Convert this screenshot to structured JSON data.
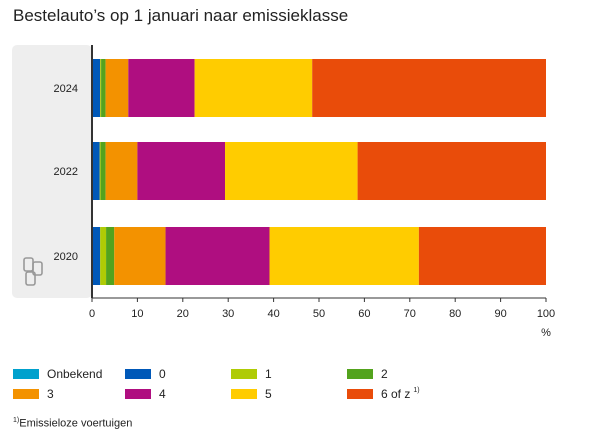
{
  "title": "Bestelauto’s op 1 januari naar emissieklasse",
  "footnote": {
    "marker": "1)",
    "text": "Emissieloze voertuigen"
  },
  "colors": {
    "onbekend": "#00a1cd",
    "0": "#0058b8",
    "1": "#afcb05",
    "2": "#53a31d",
    "3": "#f39200",
    "4": "#af0e80",
    "5": "#ffcc00",
    "6": "#e94c0a",
    "highlight_band": "#eeeeee",
    "axis": "#333333"
  },
  "chart_data": {
    "type": "bar",
    "orientation": "horizontal",
    "stacked": true,
    "title": "Bestelauto’s op 1 januari naar emissieklasse",
    "xlabel": "%",
    "ylabel": "",
    "xlim": [
      0,
      100
    ],
    "xticks": [
      0,
      10,
      20,
      30,
      40,
      50,
      60,
      70,
      80,
      90,
      100
    ],
    "grid": false,
    "legend": "bottom",
    "categories": [
      "2024",
      "2022",
      "2020"
    ],
    "series": [
      {
        "name": "Onbekend",
        "key": "onbekend",
        "values": [
          0.2,
          0.2,
          0.2
        ]
      },
      {
        "name": "0",
        "key": "0",
        "values": [
          1.6,
          1.5,
          1.6
        ]
      },
      {
        "name": "1",
        "key": "1",
        "values": [
          0.2,
          0.2,
          1.3
        ]
      },
      {
        "name": "2",
        "key": "2",
        "values": [
          1.0,
          1.1,
          1.8
        ]
      },
      {
        "name": "3",
        "key": "3",
        "values": [
          5.0,
          7.0,
          11.3
        ]
      },
      {
        "name": "4",
        "key": "4",
        "values": [
          14.6,
          19.3,
          22.9
        ]
      },
      {
        "name": "5",
        "key": "5",
        "values": [
          25.9,
          29.2,
          32.9
        ]
      },
      {
        "name": "6 of z",
        "key": "6",
        "sup": "1)",
        "values": [
          51.5,
          41.5,
          28.0
        ]
      }
    ]
  }
}
